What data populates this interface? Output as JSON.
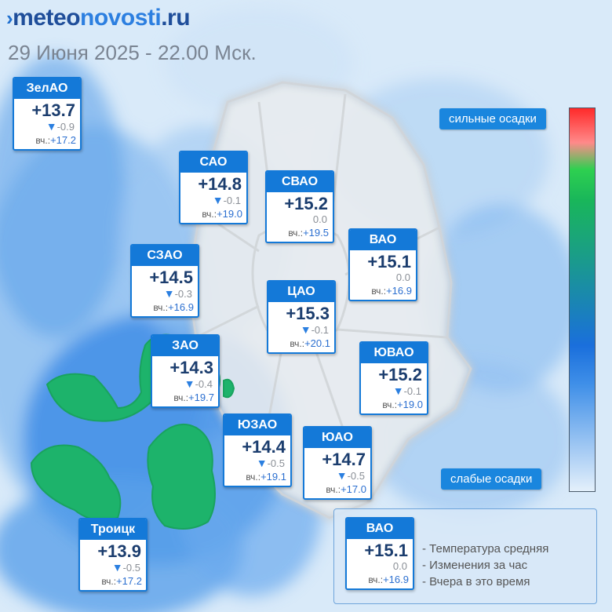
{
  "brand": {
    "mark": "›",
    "part1": "meteo",
    "part2": "novosti",
    "part3": ".ru"
  },
  "date": "29 Июня 2025 - 22.00 Мск.",
  "scale": {
    "top_label": "сильные осадки",
    "bottom_label": "слабые осадки"
  },
  "legend": {
    "lines": [
      "- Температура средняя",
      "- Изменения за час",
      "- Вчера в это время"
    ]
  },
  "yesterday_label": "вч.:",
  "districts": [
    {
      "name": "ЗелАО",
      "temp": "+13.7",
      "change": "-0.9",
      "trend": "down",
      "yesterday": "+17.2"
    },
    {
      "name": "САО",
      "temp": "+14.8",
      "change": "-0.1",
      "trend": "down",
      "yesterday": "+19.0"
    },
    {
      "name": "СВАО",
      "temp": "+15.2",
      "change": "0.0",
      "trend": "none",
      "yesterday": "+19.5"
    },
    {
      "name": "ВАО",
      "temp": "+15.1",
      "change": "0.0",
      "trend": "none",
      "yesterday": "+16.9"
    },
    {
      "name": "СЗАО",
      "temp": "+14.5",
      "change": "-0.3",
      "trend": "down",
      "yesterday": "+16.9"
    },
    {
      "name": "ЦАО",
      "temp": "+15.3",
      "change": "-0.1",
      "trend": "down",
      "yesterday": "+20.1"
    },
    {
      "name": "ЗАО",
      "temp": "+14.3",
      "change": "-0.4",
      "trend": "down",
      "yesterday": "+19.7"
    },
    {
      "name": "ЮВАО",
      "temp": "+15.2",
      "change": "-0.1",
      "trend": "down",
      "yesterday": "+19.0"
    },
    {
      "name": "ЮЗАО",
      "temp": "+14.4",
      "change": "-0.5",
      "trend": "down",
      "yesterday": "+19.1"
    },
    {
      "name": "ЮАО",
      "temp": "+14.7",
      "change": "-0.5",
      "trend": "down",
      "yesterday": "+17.0"
    },
    {
      "name": "Троицк",
      "temp": "+13.9",
      "change": "-0.5",
      "trend": "down",
      "yesterday": "+17.2"
    },
    {
      "name": "ВАО",
      "temp": "+15.1",
      "change": "0.0",
      "trend": "none",
      "yesterday": "+16.9"
    }
  ],
  "colors": {
    "accent": "#1479d8",
    "rain_light": "#2f86e6",
    "rain_heavy": "#1db36b",
    "trend_down": "#2b7fe0"
  }
}
